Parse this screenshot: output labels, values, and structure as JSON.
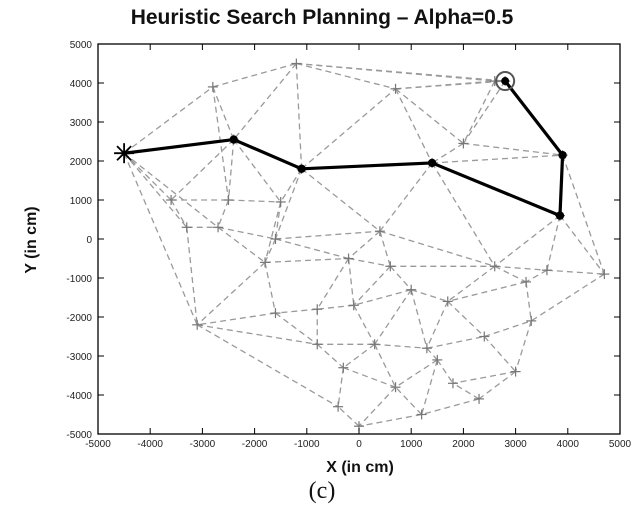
{
  "chart_data": {
    "type": "line",
    "title": "Heuristic Search Planning – Alpha=0.5",
    "xlabel": "X (in cm)",
    "ylabel": "Y (in cm)",
    "xlim": [
      -5000,
      5000
    ],
    "ylim": [
      -5000,
      5000
    ],
    "xticks": [
      -5000,
      -4000,
      -3000,
      -2000,
      -1000,
      0,
      1000,
      2000,
      3000,
      4000,
      5000
    ],
    "yticks": [
      -5000,
      -4000,
      -3000,
      -2000,
      -1000,
      0,
      1000,
      2000,
      3000,
      4000,
      5000
    ],
    "grid": false,
    "nodes": [
      [
        -4500,
        2200
      ],
      [
        -2400,
        2550
      ],
      [
        -1100,
        1800
      ],
      [
        1400,
        1950
      ],
      [
        3900,
        2150
      ],
      [
        3850,
        600
      ],
      [
        2800,
        4050
      ],
      [
        -1200,
        4500
      ],
      [
        700,
        3850
      ],
      [
        2600,
        4050
      ],
      [
        2000,
        2450
      ],
      [
        -2800,
        3900
      ],
      [
        -3600,
        1000
      ],
      [
        -2500,
        1000
      ],
      [
        -1500,
        950
      ],
      [
        -3300,
        300
      ],
      [
        -2700,
        300
      ],
      [
        -1600,
        0
      ],
      [
        400,
        200
      ],
      [
        -1800,
        -600
      ],
      [
        -200,
        -500
      ],
      [
        600,
        -700
      ],
      [
        2600,
        -700
      ],
      [
        3600,
        -800
      ],
      [
        4700,
        -900
      ],
      [
        1000,
        -1300
      ],
      [
        1700,
        -1600
      ],
      [
        -100,
        -1700
      ],
      [
        -800,
        -1800
      ],
      [
        -1600,
        -1900
      ],
      [
        -3100,
        -2200
      ],
      [
        -800,
        -2700
      ],
      [
        300,
        -2700
      ],
      [
        1300,
        -2800
      ],
      [
        2400,
        -2500
      ],
      [
        3300,
        -2100
      ],
      [
        1500,
        -3100
      ],
      [
        -300,
        -3300
      ],
      [
        3000,
        -3400
      ],
      [
        2300,
        -4100
      ],
      [
        1200,
        -4500
      ],
      [
        700,
        -3800
      ],
      [
        0,
        -4800
      ],
      [
        -400,
        -4300
      ],
      [
        1800,
        -3700
      ],
      [
        3200,
        -1100
      ]
    ],
    "edges": [
      [
        0,
        11
      ],
      [
        0,
        1
      ],
      [
        0,
        12
      ],
      [
        0,
        15
      ],
      [
        0,
        16
      ],
      [
        0,
        30
      ],
      [
        11,
        7
      ],
      [
        11,
        1
      ],
      [
        11,
        13
      ],
      [
        7,
        1
      ],
      [
        7,
        2
      ],
      [
        7,
        8
      ],
      [
        7,
        9
      ],
      [
        7,
        6
      ],
      [
        1,
        2
      ],
      [
        1,
        13
      ],
      [
        1,
        14
      ],
      [
        1,
        12
      ],
      [
        2,
        8
      ],
      [
        2,
        14
      ],
      [
        2,
        17
      ],
      [
        2,
        18
      ],
      [
        2,
        3
      ],
      [
        8,
        9
      ],
      [
        8,
        10
      ],
      [
        8,
        3
      ],
      [
        8,
        6
      ],
      [
        9,
        6
      ],
      [
        9,
        10
      ],
      [
        6,
        4
      ],
      [
        6,
        10
      ],
      [
        10,
        3
      ],
      [
        10,
        4
      ],
      [
        3,
        4
      ],
      [
        3,
        5
      ],
      [
        3,
        18
      ],
      [
        3,
        22
      ],
      [
        4,
        5
      ],
      [
        4,
        24
      ],
      [
        5,
        24
      ],
      [
        5,
        23
      ],
      [
        5,
        22
      ],
      [
        12,
        13
      ],
      [
        12,
        15
      ],
      [
        13,
        14
      ],
      [
        13,
        16
      ],
      [
        14,
        17
      ],
      [
        14,
        19
      ],
      [
        15,
        16
      ],
      [
        15,
        30
      ],
      [
        16,
        17
      ],
      [
        16,
        19
      ],
      [
        17,
        19
      ],
      [
        17,
        20
      ],
      [
        17,
        18
      ],
      [
        18,
        20
      ],
      [
        18,
        21
      ],
      [
        18,
        22
      ],
      [
        19,
        20
      ],
      [
        19,
        29
      ],
      [
        19,
        30
      ],
      [
        20,
        21
      ],
      [
        20,
        27
      ],
      [
        20,
        28
      ],
      [
        21,
        22
      ],
      [
        21,
        25
      ],
      [
        21,
        27
      ],
      [
        22,
        23
      ],
      [
        22,
        26
      ],
      [
        22,
        45
      ],
      [
        23,
        24
      ],
      [
        23,
        45
      ],
      [
        24,
        35
      ],
      [
        45,
        35
      ],
      [
        45,
        26
      ],
      [
        25,
        26
      ],
      [
        25,
        27
      ],
      [
        25,
        32
      ],
      [
        25,
        33
      ],
      [
        26,
        33
      ],
      [
        26,
        34
      ],
      [
        27,
        28
      ],
      [
        27,
        32
      ],
      [
        28,
        29
      ],
      [
        28,
        31
      ],
      [
        29,
        30
      ],
      [
        29,
        31
      ],
      [
        30,
        31
      ],
      [
        30,
        43
      ],
      [
        31,
        32
      ],
      [
        31,
        37
      ],
      [
        32,
        33
      ],
      [
        32,
        37
      ],
      [
        32,
        41
      ],
      [
        33,
        34
      ],
      [
        33,
        36
      ],
      [
        34,
        35
      ],
      [
        34,
        38
      ],
      [
        35,
        38
      ],
      [
        36,
        41
      ],
      [
        36,
        44
      ],
      [
        36,
        40
      ],
      [
        37,
        43
      ],
      [
        37,
        41
      ],
      [
        38,
        39
      ],
      [
        38,
        44
      ],
      [
        39,
        40
      ],
      [
        39,
        44
      ],
      [
        40,
        41
      ],
      [
        40,
        42
      ],
      [
        41,
        42
      ],
      [
        42,
        43
      ]
    ],
    "path": [
      [
        -4500,
        2200
      ],
      [
        -2400,
        2550
      ],
      [
        -1100,
        1800
      ],
      [
        1400,
        1950
      ],
      [
        3850,
        600
      ],
      [
        3900,
        2150
      ],
      [
        2800,
        4050
      ]
    ],
    "start_marker": "asterisk",
    "goal_marker": "circle",
    "colors": {
      "edges": "#9a9a9a",
      "path": "#000000",
      "axes": "#000000"
    }
  },
  "caption": "(c)"
}
